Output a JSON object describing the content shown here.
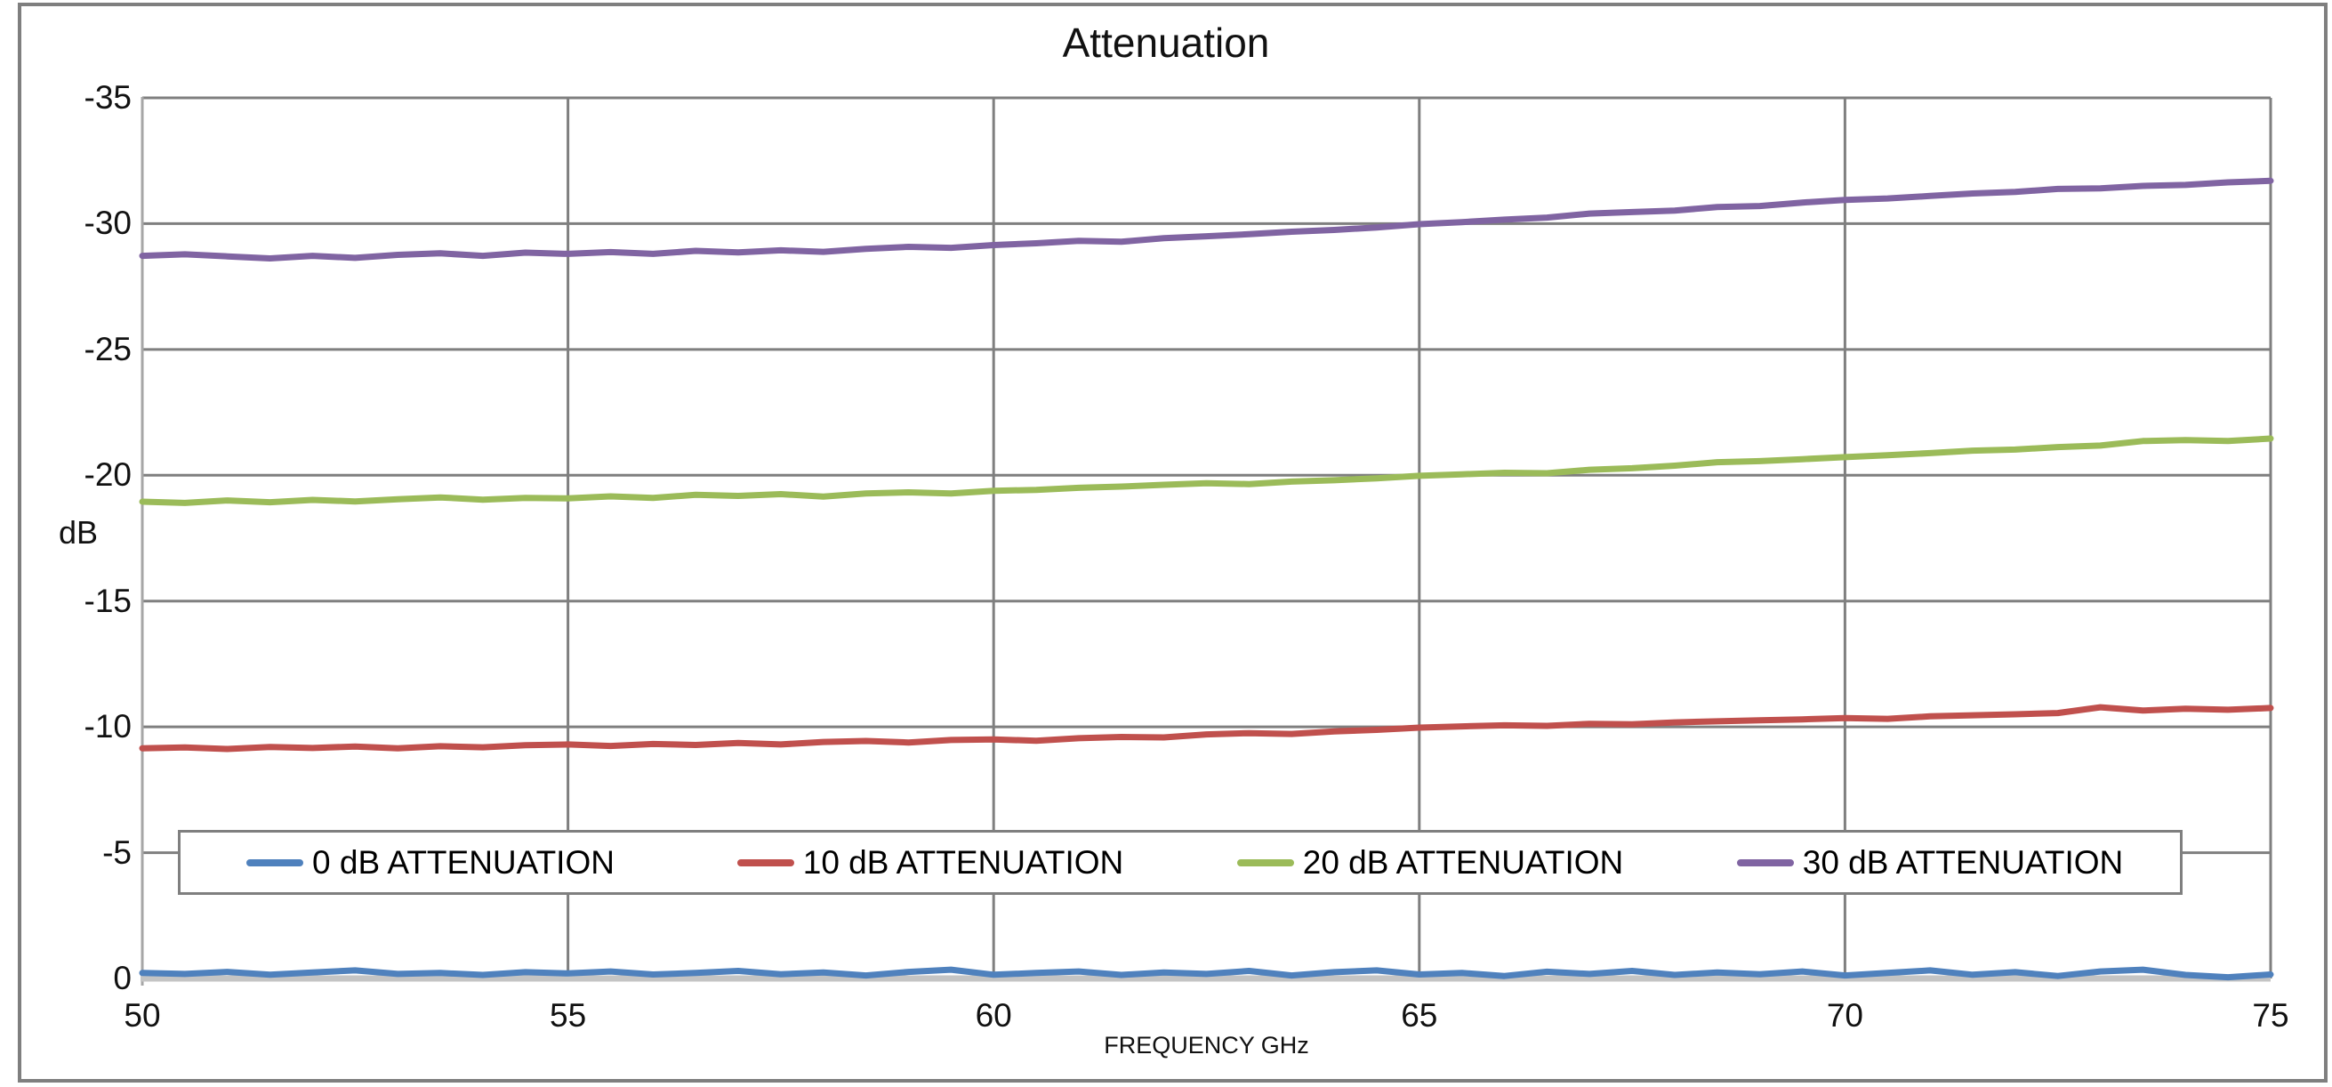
{
  "chart_data": {
    "type": "line",
    "title": "Attenuation",
    "xlabel": "FREQUENCY GHz",
    "ylabel": "dB",
    "xlim": [
      50,
      75
    ],
    "ylim": [
      0,
      -35
    ],
    "y_axis_reversed": true,
    "grid": true,
    "legend_position": "inside-bottom-horizontal",
    "x_ticks": [
      50,
      55,
      60,
      65,
      70,
      75
    ],
    "y_ticks": [
      0,
      -5,
      -10,
      -15,
      -20,
      -25,
      -30,
      -35
    ],
    "x_tick_labels": [
      "50",
      "55",
      "60",
      "65",
      "70",
      "75"
    ],
    "y_tick_labels": [
      "0",
      "-5",
      "-10",
      "-15",
      "-20",
      "-25",
      "-30",
      "-35"
    ],
    "colors": {
      "gridline": "#7f7f7f",
      "y_axis_line": "#a6a6a6",
      "zero_axis_line": "#c4c4c4",
      "border": "#7f7f7f",
      "series_blue": "#4f81bd",
      "series_red": "#c0504d",
      "series_green": "#9bbb59",
      "series_purple": "#8064a2"
    },
    "x_start": 50,
    "x_step": 0.5,
    "series": [
      {
        "name": "0 dB ATTENUATION",
        "color": "#4f81bd",
        "values": [
          -0.22,
          -0.18,
          -0.26,
          -0.15,
          -0.24,
          -0.32,
          -0.18,
          -0.22,
          -0.14,
          -0.25,
          -0.2,
          -0.28,
          -0.16,
          -0.22,
          -0.3,
          -0.17,
          -0.24,
          -0.12,
          -0.26,
          -0.35,
          -0.15,
          -0.22,
          -0.28,
          -0.14,
          -0.24,
          -0.18,
          -0.3,
          -0.12,
          -0.25,
          -0.32,
          -0.16,
          -0.22,
          -0.1,
          -0.27,
          -0.18,
          -0.3,
          -0.14,
          -0.24,
          -0.17,
          -0.28,
          -0.12,
          -0.22,
          -0.32,
          -0.15,
          -0.25,
          -0.1,
          -0.28,
          -0.35,
          -0.14,
          -0.05,
          -0.16
        ]
      },
      {
        "name": "10 dB ATTENUATION",
        "color": "#c0504d",
        "values": [
          -9.15,
          -9.18,
          -9.12,
          -9.2,
          -9.16,
          -9.22,
          -9.15,
          -9.23,
          -9.19,
          -9.27,
          -9.3,
          -9.24,
          -9.32,
          -9.28,
          -9.36,
          -9.3,
          -9.4,
          -9.44,
          -9.38,
          -9.48,
          -9.5,
          -9.45,
          -9.55,
          -9.6,
          -9.58,
          -9.7,
          -9.75,
          -9.72,
          -9.82,
          -9.88,
          -9.97,
          -10.02,
          -10.06,
          -10.04,
          -10.12,
          -10.1,
          -10.18,
          -10.22,
          -10.26,
          -10.3,
          -10.35,
          -10.32,
          -10.42,
          -10.46,
          -10.5,
          -10.55,
          -10.78,
          -10.65,
          -10.72,
          -10.68,
          -10.75
        ]
      },
      {
        "name": "20 dB ATTENUATION",
        "color": "#9bbb59",
        "values": [
          -18.95,
          -18.9,
          -19.0,
          -18.93,
          -19.02,
          -18.96,
          -19.05,
          -19.12,
          -19.03,
          -19.1,
          -19.08,
          -19.16,
          -19.1,
          -19.22,
          -19.18,
          -19.25,
          -19.15,
          -19.28,
          -19.32,
          -19.28,
          -19.38,
          -19.42,
          -19.5,
          -19.55,
          -19.62,
          -19.68,
          -19.65,
          -19.75,
          -19.8,
          -19.88,
          -19.98,
          -20.04,
          -20.1,
          -20.08,
          -20.22,
          -20.28,
          -20.38,
          -20.52,
          -20.56,
          -20.64,
          -20.72,
          -20.8,
          -20.88,
          -20.98,
          -21.02,
          -21.12,
          -21.18,
          -21.36,
          -21.4,
          -21.36,
          -21.46
        ]
      },
      {
        "name": "30 dB ATTENUATION",
        "color": "#8064a2",
        "values": [
          -28.72,
          -28.78,
          -28.7,
          -28.62,
          -28.72,
          -28.64,
          -28.76,
          -28.82,
          -28.72,
          -28.85,
          -28.8,
          -28.87,
          -28.8,
          -28.92,
          -28.86,
          -28.94,
          -28.88,
          -29.0,
          -29.08,
          -29.04,
          -29.15,
          -29.22,
          -29.32,
          -29.28,
          -29.42,
          -29.5,
          -29.58,
          -29.68,
          -29.75,
          -29.85,
          -29.98,
          -30.06,
          -30.16,
          -30.24,
          -30.4,
          -30.46,
          -30.52,
          -30.66,
          -30.7,
          -30.84,
          -30.94,
          -31.0,
          -31.1,
          -31.2,
          -31.26,
          -31.38,
          -31.4,
          -31.5,
          -31.54,
          -31.64,
          -31.7
        ]
      }
    ]
  }
}
